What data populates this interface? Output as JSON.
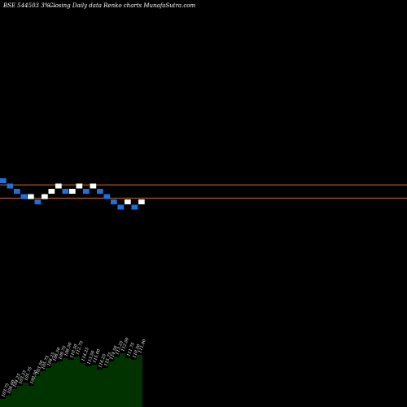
{
  "header": {
    "left": "BSE 544503 3%—",
    "middle": "Closing Daily data  Renko  charts MunafaSutra.com"
  },
  "colors": {
    "background": "#000000",
    "up_brick": "#ffffff",
    "down_brick": "#1e6fe0",
    "level_line": "#d2691e",
    "volume_fill": "#003300"
  },
  "chart_data": {
    "type": "renko",
    "title": "BSE 544503 3%— Closing Daily data Renko charts MunafaSutra.com",
    "bricks": [
      {
        "dir": "down",
        "level": 8
      },
      {
        "dir": "down",
        "level": 7
      },
      {
        "dir": "down",
        "level": 6
      },
      {
        "dir": "down",
        "level": 5
      },
      {
        "dir": "up",
        "level": 5
      },
      {
        "dir": "down",
        "level": 4
      },
      {
        "dir": "up",
        "level": 5
      },
      {
        "dir": "up",
        "level": 6
      },
      {
        "dir": "up",
        "level": 7
      },
      {
        "dir": "down",
        "level": 6
      },
      {
        "dir": "up",
        "level": 6
      },
      {
        "dir": "up",
        "level": 7
      },
      {
        "dir": "down",
        "level": 6
      },
      {
        "dir": "up",
        "level": 7
      },
      {
        "dir": "down",
        "level": 6
      },
      {
        "dir": "down",
        "level": 5
      },
      {
        "dir": "down",
        "level": 4
      },
      {
        "dir": "down",
        "level": 3
      },
      {
        "dir": "up",
        "level": 4
      },
      {
        "dir": "down",
        "level": 3
      },
      {
        "dir": "up",
        "level": 4
      }
    ],
    "reference_levels": [
      6.75,
      4.25
    ],
    "volume": {
      "labels": [
        "103.75",
        "104.00",
        "104.25",
        "103.25",
        "101.75",
        "100.50",
        "103.50",
        "105.75",
        "104.25",
        "106.50",
        "109.75",
        "108.50",
        "110.50",
        "112.75",
        "114.25",
        "113.50",
        "115.00",
        "116.25",
        "115.75",
        "114.50",
        "113.25",
        "112.50",
        "111.75",
        "110.50",
        "111.00"
      ],
      "heights": [
        10,
        14,
        22,
        26,
        30,
        26,
        38,
        44,
        48,
        54,
        56,
        60,
        58,
        62,
        54,
        50,
        52,
        46,
        48,
        56,
        62,
        66,
        60,
        58,
        64
      ]
    }
  }
}
